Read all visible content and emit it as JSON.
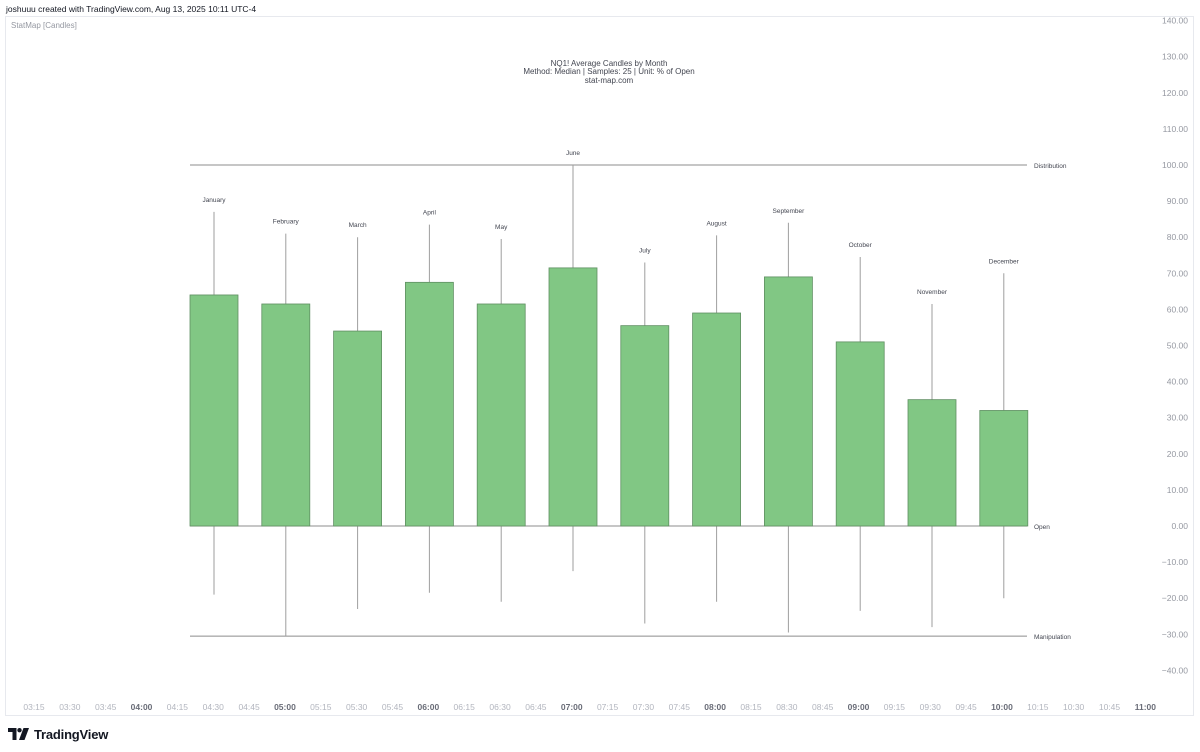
{
  "header": {
    "caption": "joshuuu created with TradingView.com, Aug 13, 2025 10:11 UTC-4"
  },
  "indicator": {
    "label": "StatMap [Candles]"
  },
  "footer": {
    "brand": "TradingView",
    "logo_icon": "tradingview-logo-icon"
  },
  "colors": {
    "candle_fill": "#81c784",
    "candle_border": "#5f8f62",
    "wick": "#9e9e9e",
    "level_line": "#8c8c8c",
    "axis_text": "#9598a1"
  },
  "chart_data": {
    "type": "candlestick",
    "title": "NQ1! Average Candles by Month",
    "subtitle": "Method: Median | Samples: 25 | Unit: % of Open",
    "source": "stat-map.com",
    "y_axis": {
      "ticks": [
        "140.00",
        "130.00",
        "120.00",
        "110.00",
        "100.00",
        "90.00",
        "80.00",
        "70.00",
        "60.00",
        "50.00",
        "40.00",
        "30.00",
        "20.00",
        "10.00",
        "0.00",
        "−10.00",
        "−20.00",
        "−30.00",
        "−40.00"
      ],
      "range": [
        -44,
        142
      ]
    },
    "x_axis": {
      "ticks": [
        "03:15",
        "03:30",
        "03:45",
        "04:00",
        "04:15",
        "04:30",
        "04:45",
        "05:00",
        "05:15",
        "05:30",
        "05:45",
        "06:00",
        "06:15",
        "06:30",
        "06:45",
        "07:00",
        "07:15",
        "07:30",
        "07:45",
        "08:00",
        "08:15",
        "08:30",
        "08:45",
        "09:00",
        "09:15",
        "09:30",
        "09:45",
        "10:00",
        "10:15",
        "10:30",
        "10:45",
        "11:00"
      ],
      "bold_ticks": [
        "04:00",
        "05:00",
        "06:00",
        "07:00",
        "08:00",
        "09:00",
        "10:00",
        "11:00"
      ]
    },
    "levels": [
      {
        "label": "Distribution",
        "value": 100
      },
      {
        "label": "Open",
        "value": 0
      },
      {
        "label": "Manipulation",
        "value": -30.5
      }
    ],
    "candles": [
      {
        "label": "January",
        "open": 0,
        "close": 64,
        "high": 87,
        "low": -19
      },
      {
        "label": "February",
        "open": 0,
        "close": 61.5,
        "high": 81,
        "low": -30.5
      },
      {
        "label": "March",
        "open": 0,
        "close": 54,
        "high": 80,
        "low": -23
      },
      {
        "label": "April",
        "open": 0,
        "close": 67.5,
        "high": 83.5,
        "low": -18.5
      },
      {
        "label": "May",
        "open": 0,
        "close": 61.5,
        "high": 79.5,
        "low": -21
      },
      {
        "label": "June",
        "open": 0,
        "close": 71.5,
        "high": 100,
        "low": -12.5
      },
      {
        "label": "July",
        "open": 0,
        "close": 55.5,
        "high": 73,
        "low": -27
      },
      {
        "label": "August",
        "open": 0,
        "close": 59,
        "high": 80.5,
        "low": -21
      },
      {
        "label": "September",
        "open": 0,
        "close": 69,
        "high": 84,
        "low": -29.5
      },
      {
        "label": "October",
        "open": 0,
        "close": 51,
        "high": 74.5,
        "low": -23.5
      },
      {
        "label": "November",
        "open": 0,
        "close": 35,
        "high": 61.5,
        "low": -28
      },
      {
        "label": "December",
        "open": 0,
        "close": 32,
        "high": 70,
        "low": -20
      }
    ]
  }
}
